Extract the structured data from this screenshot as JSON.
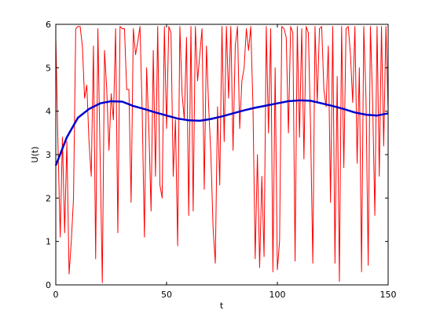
{
  "chart_data": {
    "type": "line",
    "xlabel": "t",
    "ylabel": "U(t)",
    "xlim": [
      0,
      150
    ],
    "ylim": [
      0,
      6
    ],
    "xticks": [
      0,
      50,
      100,
      150
    ],
    "yticks": [
      0,
      1,
      2,
      3,
      4,
      5,
      6
    ],
    "grid": false,
    "series": [
      {
        "color": "#ff0000",
        "width": 1,
        "x": [
          0,
          1,
          2,
          3,
          4,
          5,
          6,
          7,
          8,
          9,
          10,
          11,
          12,
          13,
          14,
          15,
          16,
          17,
          18,
          19,
          20,
          21,
          22,
          23,
          24,
          25,
          26,
          27,
          28,
          29,
          30,
          31,
          32,
          33,
          34,
          35,
          36,
          37,
          38,
          39,
          40,
          41,
          42,
          43,
          44,
          45,
          46,
          47,
          48,
          49,
          50,
          51,
          52,
          53,
          54,
          55,
          56,
          57,
          58,
          59,
          60,
          61,
          62,
          63,
          64,
          65,
          66,
          67,
          68,
          69,
          70,
          71,
          72,
          73,
          74,
          75,
          76,
          77,
          78,
          79,
          80,
          81,
          82,
          83,
          84,
          85,
          86,
          87,
          88,
          89,
          90,
          91,
          92,
          93,
          94,
          95,
          96,
          97,
          98,
          99,
          100,
          101,
          102,
          103,
          104,
          105,
          106,
          107,
          108,
          109,
          110,
          111,
          112,
          113,
          114,
          115,
          116,
          117,
          118,
          119,
          120,
          121,
          122,
          123,
          124,
          125,
          126,
          127,
          128,
          129,
          130,
          131,
          132,
          133,
          134,
          135,
          136,
          137,
          138,
          139,
          140,
          141,
          142,
          143,
          144,
          145,
          146,
          147,
          148,
          149,
          150
        ],
        "values": [
          5.7,
          3.2,
          1.1,
          3.4,
          1.2,
          3.3,
          0.25,
          1.0,
          2.0,
          5.9,
          5.95,
          5.95,
          5.5,
          4.3,
          4.6,
          3.3,
          2.5,
          5.5,
          0.6,
          5.9,
          3.0,
          0.05,
          5.4,
          4.5,
          3.1,
          4.4,
          3.8,
          5.9,
          1.2,
          5.95,
          5.9,
          5.9,
          4.5,
          4.5,
          1.9,
          5.9,
          5.3,
          5.6,
          5.95,
          4.0,
          1.1,
          5.0,
          3.6,
          1.7,
          5.4,
          2.5,
          5.95,
          2.3,
          2.0,
          5.95,
          3.6,
          5.95,
          5.8,
          2.5,
          3.8,
          0.9,
          5.95,
          4.4,
          3.8,
          5.7,
          1.6,
          5.95,
          1.7,
          5.95,
          4.7,
          5.3,
          5.9,
          2.2,
          5.5,
          4.1,
          3.0,
          1.3,
          0.5,
          4.1,
          2.3,
          5.95,
          3.3,
          5.95,
          4.3,
          5.95,
          3.1,
          5.5,
          5.95,
          3.6,
          4.7,
          5.0,
          5.9,
          5.4,
          5.95,
          4.1,
          0.6,
          3.0,
          0.4,
          2.5,
          0.65,
          5.95,
          3.5,
          5.9,
          0.3,
          5.0,
          0.35,
          1.0,
          5.95,
          5.9,
          5.7,
          3.5,
          5.95,
          5.8,
          0.55,
          5.95,
          3.4,
          5.9,
          2.9,
          5.95,
          5.8,
          3.6,
          0.5,
          5.95,
          4.2,
          5.9,
          5.95,
          4.5,
          4.1,
          5.5,
          1.9,
          5.95,
          0.5,
          4.8,
          0.08,
          5.95,
          2.7,
          5.9,
          5.95,
          5.3,
          4.2,
          5.95,
          2.8,
          5.0,
          0.3,
          5.95,
          4.3,
          0.45,
          5.95,
          4.2,
          1.6,
          5.95,
          2.5,
          5.95,
          3.2,
          5.95,
          4.0
        ]
      },
      {
        "color": "#0000cc",
        "width": 2.5,
        "x": [
          0,
          5,
          10,
          15,
          20,
          25,
          30,
          35,
          40,
          45,
          50,
          55,
          60,
          65,
          70,
          75,
          80,
          85,
          90,
          95,
          100,
          105,
          110,
          115,
          120,
          125,
          130,
          135,
          140,
          145,
          150
        ],
        "values": [
          2.75,
          3.4,
          3.85,
          4.05,
          4.18,
          4.23,
          4.22,
          4.12,
          4.05,
          3.97,
          3.9,
          3.83,
          3.79,
          3.78,
          3.82,
          3.88,
          3.95,
          4.02,
          4.08,
          4.13,
          4.18,
          4.23,
          4.25,
          4.24,
          4.18,
          4.12,
          4.05,
          3.97,
          3.92,
          3.9,
          3.95
        ]
      }
    ]
  }
}
